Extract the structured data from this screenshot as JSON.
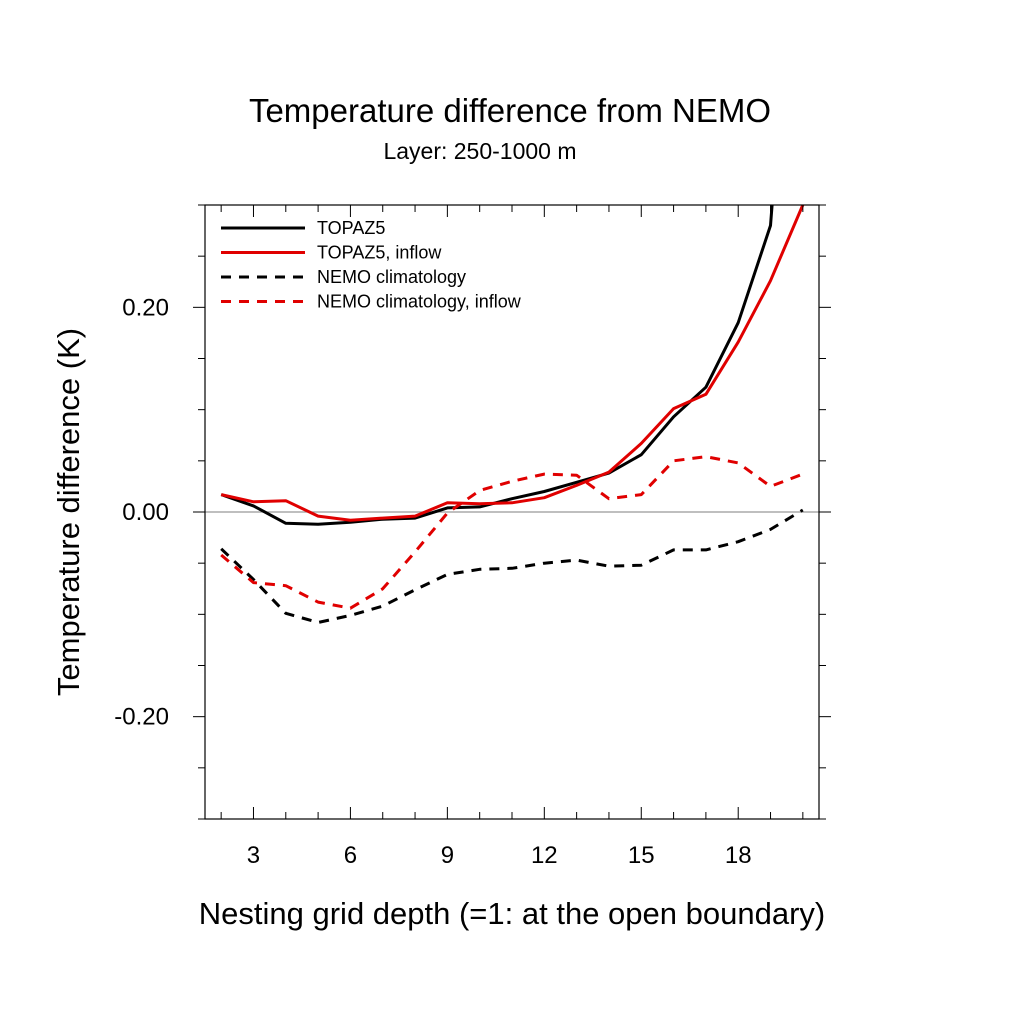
{
  "chart_data": {
    "type": "line",
    "title": "Temperature difference from NEMO",
    "subtitle": "Layer: 250-1000 m",
    "xlabel": "Nesting grid depth (=1: at the open boundary)",
    "ylabel": "Temperature difference (K)",
    "xlim": [
      1.5,
      20.5
    ],
    "ylim": [
      -0.3,
      0.3
    ],
    "x_ticks": [
      3,
      6,
      9,
      12,
      15,
      18
    ],
    "x_tick_labels": [
      "3",
      "6",
      "9",
      "12",
      "15",
      "18"
    ],
    "y_ticks": [
      -0.2,
      0.0,
      0.2
    ],
    "y_tick_labels": [
      "-0.20",
      "0.00",
      "0.20"
    ],
    "zero_line": true,
    "grid": false,
    "legend_position": "top-left",
    "x": [
      2,
      3,
      4,
      5,
      6,
      7,
      8,
      9,
      10,
      11,
      12,
      13,
      14,
      15,
      16,
      17,
      18,
      19,
      20
    ],
    "series": [
      {
        "name": "TOPAZ5",
        "color": "#000000",
        "dash": "solid",
        "values": [
          0.017,
          0.006,
          -0.011,
          -0.012,
          -0.01,
          -0.007,
          -0.006,
          0.004,
          0.005,
          0.013,
          0.02,
          0.029,
          0.038,
          0.056,
          0.093,
          0.122,
          0.185,
          0.28,
          null
        ],
        "x_end": 19.05,
        "y_end": 0.3
      },
      {
        "name": "TOPAZ5, inflow",
        "color": "#e00000",
        "dash": "solid",
        "values": [
          0.017,
          0.01,
          0.011,
          -0.004,
          -0.008,
          -0.006,
          -0.004,
          0.009,
          0.008,
          0.009,
          0.014,
          0.026,
          0.039,
          0.067,
          0.101,
          0.115,
          0.166,
          0.226,
          0.3
        ],
        "x_end": null,
        "y_end": null
      },
      {
        "name": "NEMO climatology",
        "color": "#000000",
        "dash": "dashed",
        "values": [
          -0.036,
          -0.066,
          -0.099,
          -0.108,
          -0.101,
          -0.092,
          -0.076,
          -0.061,
          -0.056,
          -0.055,
          -0.05,
          -0.047,
          -0.053,
          -0.052,
          -0.037,
          -0.037,
          -0.029,
          -0.017,
          0.002
        ],
        "x_end": null,
        "y_end": null
      },
      {
        "name": "NEMO climatology, inflow",
        "color": "#e00000",
        "dash": "dashed",
        "values": [
          -0.042,
          -0.069,
          -0.072,
          -0.088,
          -0.094,
          -0.075,
          -0.039,
          -0.001,
          0.021,
          0.03,
          0.037,
          0.036,
          0.013,
          0.017,
          0.05,
          0.054,
          0.048,
          0.025,
          0.037
        ],
        "x_end": null,
        "y_end": null
      }
    ]
  }
}
